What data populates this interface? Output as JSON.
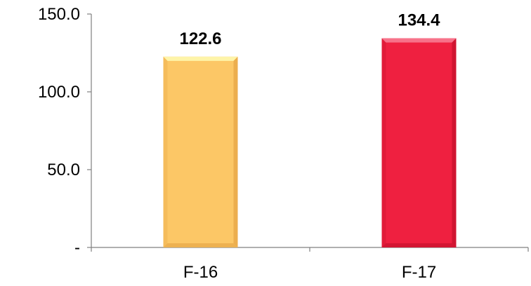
{
  "chart_data": {
    "type": "bar",
    "title": "",
    "xlabel": "",
    "ylabel": "",
    "categories": [
      "F-16",
      "F-17"
    ],
    "values": [
      122.6,
      134.4
    ],
    "value_labels": [
      "122.6",
      "134.4"
    ],
    "ylim": [
      0,
      150
    ],
    "y_ticks": [
      {
        "value": 0,
        "label": "-"
      },
      {
        "value": 50,
        "label": "50.0"
      },
      {
        "value": 100,
        "label": "100.0"
      },
      {
        "value": 150,
        "label": "150.0"
      }
    ],
    "grid": false,
    "legend": "none",
    "colors": {
      "bars": [
        "#fcc766",
        "#ef2040"
      ],
      "bar_tops": [
        "#fef4a8",
        "#f7728a"
      ],
      "bar_edges": [
        "#e7a849",
        "#c8132d"
      ],
      "axis": "#808080"
    }
  }
}
